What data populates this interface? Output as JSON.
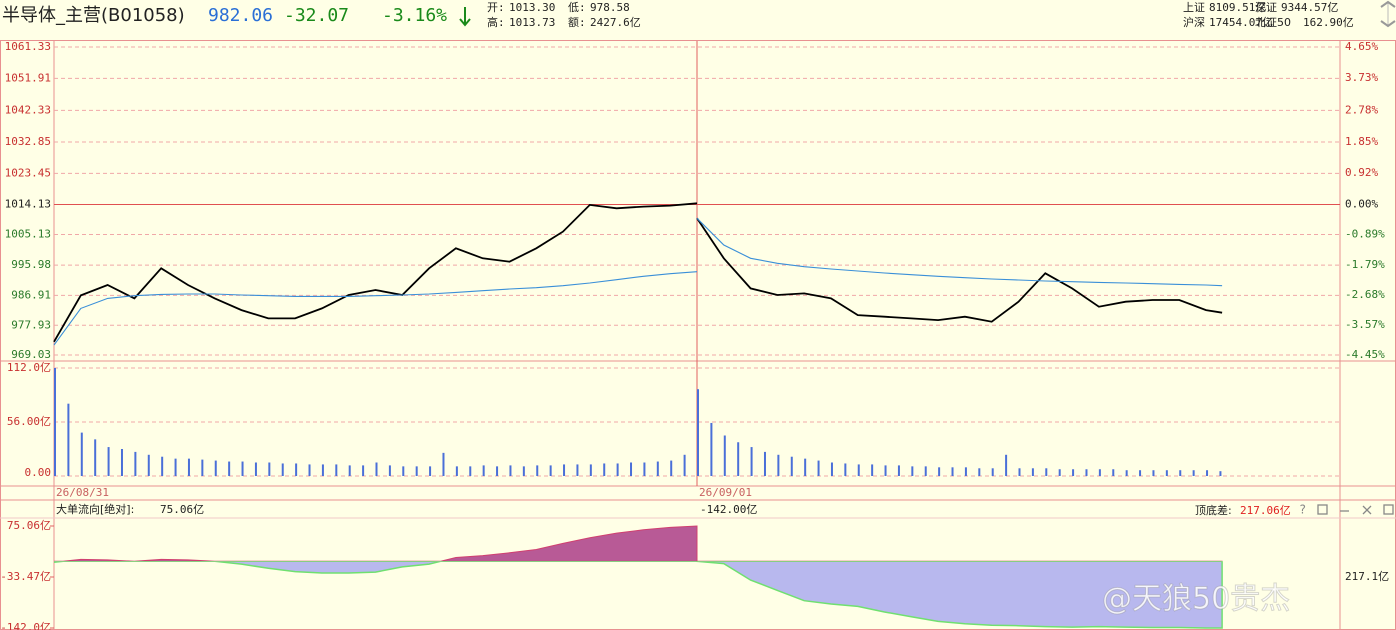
{
  "header": {
    "title": "半导体_主营(B01058)",
    "price": "982.06",
    "change": "-32.07",
    "change_pct": "-3.16%",
    "stats": [
      {
        "label": "开:",
        "value": "1013.30"
      },
      {
        "label": "低:",
        "value": "978.58"
      },
      {
        "label": "高:",
        "value": "1013.73"
      },
      {
        "label": "额:",
        "value": "2427.6亿"
      }
    ],
    "market": [
      {
        "label": "上证",
        "value": "8109.51亿"
      },
      {
        "label": "深证",
        "value": "9344.57亿"
      },
      {
        "label": "沪深",
        "value": "17454.07亿"
      },
      {
        "label": "北证50",
        "value": "162.90亿"
      }
    ]
  },
  "watermark": "@天狼50贵杰",
  "chart_data": [
    {
      "type": "line",
      "xlim": [
        0,
        480
      ],
      "xticks": [
        {
          "value": 0,
          "label": "26/08/31"
        },
        {
          "value": 240,
          "label": "26/09/01"
        }
      ],
      "ylim": [
        969.03,
        1061.33
      ],
      "yticks": [
        969.03,
        977.93,
        986.91,
        995.98,
        1005.13,
        1014.13,
        1023.45,
        1032.85,
        1042.33,
        1051.91,
        1061.33
      ],
      "y2lim": [
        -4.45,
        4.65
      ],
      "y2ticks": [
        {
          "value": -4.45,
          "label": "-4.45%"
        },
        {
          "value": -3.57,
          "label": "-3.57%"
        },
        {
          "value": -2.68,
          "label": "-2.68%"
        },
        {
          "value": -1.79,
          "label": "-1.79%"
        },
        {
          "value": -0.89,
          "label": "-0.89%"
        },
        {
          "value": 0,
          "label": "0.00%"
        },
        {
          "value": 0.92,
          "label": "0.92%"
        },
        {
          "value": 1.85,
          "label": "1.85%"
        },
        {
          "value": 2.78,
          "label": "2.78%"
        },
        {
          "value": 3.73,
          "label": "3.73%"
        },
        {
          "value": 4.65,
          "label": "4.65%"
        }
      ],
      "grid": true,
      "x": [
        0,
        10,
        20,
        30,
        40,
        50,
        60,
        70,
        80,
        90,
        100,
        110,
        120,
        130,
        140,
        150,
        160,
        170,
        180,
        190,
        200,
        210,
        220,
        230,
        240,
        240,
        240,
        250,
        260,
        270,
        280,
        290,
        300,
        310,
        320,
        330,
        340,
        350,
        360,
        370,
        380,
        390,
        400,
        410,
        420,
        430,
        436
      ],
      "series": [
        {
          "color": "#000000",
          "values": [
            973,
            986.9,
            990,
            986,
            995,
            990,
            986,
            982.5,
            980,
            980,
            983,
            987,
            988.5,
            987,
            995,
            1001,
            998,
            997,
            1001,
            1006,
            1014,
            1013,
            1013.5,
            1013.8,
            1014.5,
            null,
            1010,
            998,
            989,
            987,
            987.5,
            986,
            981,
            980.5,
            980,
            979.5,
            980.5,
            979,
            985,
            993.5,
            989,
            983.5,
            985,
            985.5,
            985.5,
            982.5,
            981.7
          ]
        },
        {
          "color": "#3a8fd8",
          "values": [
            972,
            983,
            986,
            986.8,
            987.2,
            987.3,
            987.3,
            987,
            986.8,
            986.6,
            986.6,
            986.6,
            986.8,
            987,
            987.3,
            987.8,
            988.3,
            988.8,
            989.2,
            989.8,
            990.6,
            991.6,
            992.6,
            993.4,
            994,
            null,
            1010,
            1002,
            998,
            996.5,
            995.5,
            994.8,
            994.2,
            993.6,
            993.1,
            992.6,
            992.2,
            991.8,
            991.5,
            991.2,
            991,
            990.8,
            990.6,
            990.4,
            990.2,
            990,
            989.8
          ]
        }
      ]
    },
    {
      "type": "bar",
      "xlim": [
        0,
        480
      ],
      "ylim": [
        0,
        112
      ],
      "yticks": [
        {
          "value": 0,
          "label": "0.00"
        },
        {
          "value": 56,
          "label": "56.00亿"
        },
        {
          "value": 112,
          "label": "112.0亿"
        }
      ],
      "color": "#4a6fd8",
      "x": [
        0,
        5,
        10,
        15,
        20,
        25,
        30,
        35,
        40,
        45,
        50,
        55,
        60,
        65,
        70,
        75,
        80,
        85,
        90,
        95,
        100,
        105,
        110,
        115,
        120,
        125,
        130,
        135,
        140,
        145,
        150,
        155,
        160,
        165,
        170,
        175,
        180,
        185,
        190,
        195,
        200,
        205,
        210,
        215,
        220,
        225,
        230,
        235,
        240,
        245,
        250,
        255,
        260,
        265,
        270,
        275,
        280,
        285,
        290,
        295,
        300,
        305,
        310,
        315,
        320,
        325,
        330,
        335,
        340,
        345,
        350,
        355,
        360,
        365,
        370,
        375,
        380,
        385,
        390,
        395,
        400,
        405,
        410,
        415,
        420,
        425,
        430,
        435
      ],
      "values": [
        112,
        75,
        45,
        38,
        30,
        28,
        25,
        22,
        20,
        18,
        18,
        17,
        16,
        15,
        15,
        14,
        14,
        13,
        13,
        12,
        12,
        12,
        11,
        11,
        14,
        11,
        10,
        10,
        10,
        24,
        10,
        10,
        11,
        10,
        11,
        10,
        11,
        11,
        12,
        12,
        12,
        13,
        13,
        14,
        14,
        15,
        16,
        22,
        90,
        55,
        42,
        35,
        30,
        25,
        22,
        20,
        18,
        16,
        14,
        13,
        12,
        12,
        11,
        11,
        10,
        10,
        9,
        9,
        9,
        8,
        8,
        22,
        8,
        8,
        8,
        7,
        7,
        7,
        7,
        7,
        6,
        6,
        6,
        6,
        6,
        6,
        6,
        5
      ]
    },
    {
      "type": "area",
      "title": "大单流向[绝对]:",
      "title_value": "75.06亿",
      "marker": "-142.00亿",
      "range_label": "顶底差:",
      "range_value": "217.06亿",
      "right_label": "217.1亿",
      "xlim": [
        0,
        480
      ],
      "ylim": [
        -142,
        75.06
      ],
      "yticks": [
        {
          "value": -142,
          "label": "-142.0亿"
        },
        {
          "value": -33.47,
          "label": "-33.47亿"
        },
        {
          "value": 75.06,
          "label": "75.06亿"
        }
      ],
      "x": [
        0,
        10,
        20,
        30,
        40,
        50,
        60,
        70,
        80,
        90,
        100,
        110,
        120,
        130,
        140,
        150,
        160,
        170,
        180,
        190,
        200,
        210,
        220,
        230,
        240,
        240,
        240,
        250,
        260,
        270,
        280,
        290,
        300,
        310,
        320,
        330,
        340,
        350,
        360,
        370,
        380,
        390,
        400,
        410,
        420,
        430,
        436
      ],
      "values": [
        -2,
        4,
        3,
        0,
        4,
        3,
        0,
        -6,
        -15,
        -22,
        -25,
        -25,
        -23,
        -12,
        -6,
        8,
        12,
        18,
        25,
        38,
        50,
        60,
        67,
        72,
        75.06,
        null,
        0,
        -5,
        -40,
        -62,
        -84,
        -91,
        -96,
        -108,
        -118,
        -128,
        -133,
        -136,
        -137,
        -139,
        -140,
        -139,
        -140,
        -141,
        -141,
        -142,
        -142
      ],
      "colors": [
        "#b85a96",
        "#b8b8ee"
      ]
    }
  ]
}
